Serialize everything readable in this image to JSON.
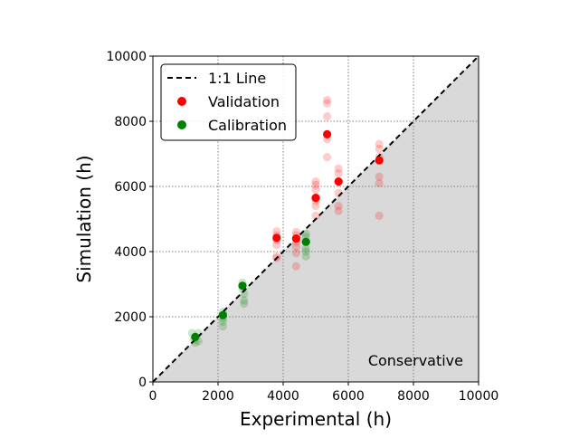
{
  "chart_data": {
    "type": "scatter",
    "title": "",
    "xlabel": "Experimental (h)",
    "ylabel": "Simulation (h)",
    "xlim": [
      0,
      10000
    ],
    "ylim": [
      0,
      10000
    ],
    "xticks": [
      "0",
      "2000",
      "4000",
      "6000",
      "8000",
      "10000"
    ],
    "yticks": [
      "0",
      "2000",
      "4000",
      "6000",
      "8000",
      "10000"
    ],
    "grid": true,
    "legend": "top-left",
    "reference_line": {
      "label": "1:1 Line",
      "slope": 1
    },
    "shaded_region": {
      "label": "Conservative",
      "description": "region below the 1:1 line",
      "color": "#d9d9d9"
    },
    "series": [
      {
        "name": "Validation",
        "color": "#ff0000",
        "mean_points": [
          {
            "x": 3800,
            "y": 4420
          },
          {
            "x": 4400,
            "y": 4400
          },
          {
            "x": 5000,
            "y": 5650
          },
          {
            "x": 5350,
            "y": 7600
          },
          {
            "x": 5700,
            "y": 6150
          },
          {
            "x": 6950,
            "y": 6800
          }
        ],
        "replicate_points": [
          {
            "x": 3800,
            "y": 4620
          },
          {
            "x": 3800,
            "y": 4500
          },
          {
            "x": 3800,
            "y": 4350
          },
          {
            "x": 3800,
            "y": 4200
          },
          {
            "x": 3800,
            "y": 3850
          },
          {
            "x": 3800,
            "y": 3800
          },
          {
            "x": 4400,
            "y": 4600
          },
          {
            "x": 4400,
            "y": 4500
          },
          {
            "x": 4400,
            "y": 4300
          },
          {
            "x": 4400,
            "y": 4150
          },
          {
            "x": 4400,
            "y": 3950
          },
          {
            "x": 4400,
            "y": 3550
          },
          {
            "x": 5000,
            "y": 6150
          },
          {
            "x": 5000,
            "y": 6050
          },
          {
            "x": 5000,
            "y": 5900
          },
          {
            "x": 5000,
            "y": 5550
          },
          {
            "x": 5000,
            "y": 5400
          },
          {
            "x": 5000,
            "y": 5100
          },
          {
            "x": 5350,
            "y": 8650
          },
          {
            "x": 5350,
            "y": 8550
          },
          {
            "x": 5350,
            "y": 8150
          },
          {
            "x": 5350,
            "y": 7450
          },
          {
            "x": 5350,
            "y": 6900
          },
          {
            "x": 5700,
            "y": 6550
          },
          {
            "x": 5700,
            "y": 6400
          },
          {
            "x": 5700,
            "y": 5800
          },
          {
            "x": 5700,
            "y": 5400
          },
          {
            "x": 5700,
            "y": 5250
          },
          {
            "x": 6950,
            "y": 7300
          },
          {
            "x": 6950,
            "y": 7150
          },
          {
            "x": 6950,
            "y": 6900
          },
          {
            "x": 6950,
            "y": 6300
          },
          {
            "x": 6950,
            "y": 6100
          },
          {
            "x": 6950,
            "y": 5100
          }
        ]
      },
      {
        "name": "Calibration",
        "color": "#008000",
        "mean_points": [
          {
            "x": 1300,
            "y": 1380
          },
          {
            "x": 2150,
            "y": 2050
          },
          {
            "x": 2750,
            "y": 2950
          },
          {
            "x": 4700,
            "y": 4300
          }
        ],
        "replicate_points": [
          {
            "x": 1200,
            "y": 1500
          },
          {
            "x": 1400,
            "y": 1500
          },
          {
            "x": 1250,
            "y": 1300
          },
          {
            "x": 1400,
            "y": 1250
          },
          {
            "x": 1300,
            "y": 1200
          },
          {
            "x": 2150,
            "y": 2150
          },
          {
            "x": 2150,
            "y": 1950
          },
          {
            "x": 2150,
            "y": 1850
          },
          {
            "x": 2150,
            "y": 1700
          },
          {
            "x": 2750,
            "y": 3050
          },
          {
            "x": 2750,
            "y": 2850
          },
          {
            "x": 2800,
            "y": 2700
          },
          {
            "x": 2800,
            "y": 2500
          },
          {
            "x": 2800,
            "y": 2400
          },
          {
            "x": 4700,
            "y": 4550
          },
          {
            "x": 4700,
            "y": 4450
          },
          {
            "x": 4700,
            "y": 4100
          },
          {
            "x": 4700,
            "y": 4000
          },
          {
            "x": 4700,
            "y": 3850
          }
        ]
      }
    ]
  }
}
